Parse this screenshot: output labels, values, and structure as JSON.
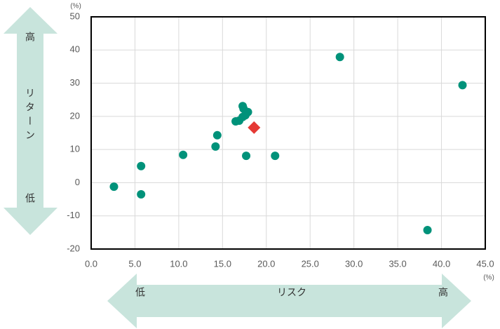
{
  "chart_data": {
    "type": "scatter",
    "xlabel": "(%)",
    "ylabel": "(%)",
    "xlim": [
      0,
      45
    ],
    "ylim": [
      -20,
      50
    ],
    "xticks": [
      {
        "value": 0,
        "label": "0.0"
      },
      {
        "value": 5,
        "label": "5.0"
      },
      {
        "value": 10,
        "label": "10.0"
      },
      {
        "value": 15,
        "label": "15.0"
      },
      {
        "value": 20,
        "label": "20.0"
      },
      {
        "value": 25,
        "label": "25.0"
      },
      {
        "value": 30,
        "label": "30.0"
      },
      {
        "value": 35,
        "label": "35.0"
      },
      {
        "value": 40,
        "label": "40.0"
      },
      {
        "value": 45,
        "label": "45.0"
      }
    ],
    "yticks": [
      -20,
      -10,
      0,
      10,
      20,
      30,
      40,
      50
    ],
    "grid": true,
    "series": [
      {
        "color": "#00927a",
        "marker": "circle",
        "x": [
          2.6,
          5.7,
          5.7,
          10.5,
          14.2,
          14.4,
          16.5,
          16.9,
          17.3,
          17.4,
          17.3,
          17.6,
          17.9,
          17.7,
          21.0,
          28.4,
          42.4,
          38.4
        ],
        "values": [
          -1.2,
          5.0,
          -3.5,
          8.4,
          10.9,
          14.3,
          18.5,
          18.7,
          23.1,
          22.3,
          19.8,
          20.3,
          21.3,
          8.1,
          8.1,
          37.9,
          29.4,
          -14.3
        ]
      },
      {
        "color": "#e53935",
        "marker": "diamond",
        "x": [
          18.6
        ],
        "values": [
          16.6
        ]
      }
    ],
    "annotations": {
      "y_arrow": {
        "high": "高",
        "label": "リターン",
        "low": "低"
      },
      "x_arrow": {
        "low": "低",
        "label": "リスク",
        "high": "高"
      }
    }
  }
}
